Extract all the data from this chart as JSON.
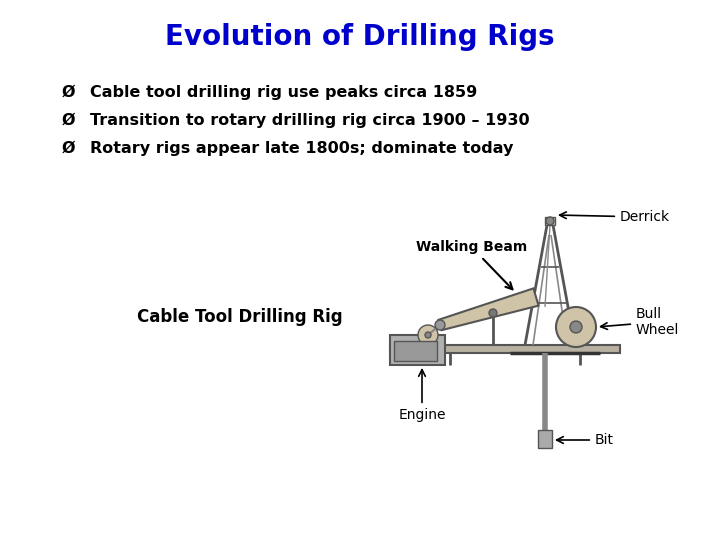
{
  "title": "Evolution of Drilling Rigs",
  "title_color": "#0000CC",
  "title_fontsize": 20,
  "bullets": [
    "Cable tool drilling rig use peaks circa 1859",
    "Transition to rotary drilling rig circa 1900 – 1930",
    "Rotary rigs appear late 1800s; dominate today"
  ],
  "bullet_fontsize": 11.5,
  "diagram_label": "Cable Tool Drilling Rig",
  "diagram_label_fontsize": 12,
  "annotation_fontsize": 10,
  "background_color": "#ffffff",
  "rig_color": "#d0c4a8",
  "rig_dark": "#a09080",
  "rig_line_color": "#555555",
  "label_derrick": "Derrick",
  "label_walking_beam": "Walking Beam",
  "label_bull_wheel": "Bull\nWheel",
  "label_engine": "Engine",
  "label_bit": "Bit"
}
